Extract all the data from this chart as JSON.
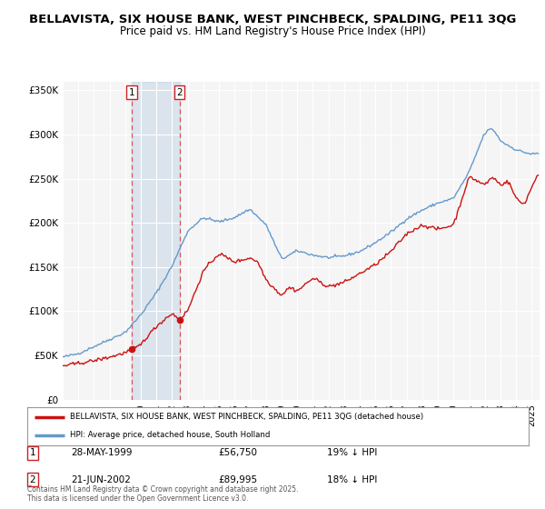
{
  "title1": "BELLAVISTA, SIX HOUSE BANK, WEST PINCHBECK, SPALDING, PE11 3QG",
  "title2": "Price paid vs. HM Land Registry's House Price Index (HPI)",
  "ylabel_ticks": [
    "£0",
    "£50K",
    "£100K",
    "£150K",
    "£200K",
    "£250K",
    "£300K",
    "£350K"
  ],
  "ytick_values": [
    0,
    50000,
    100000,
    150000,
    200000,
    250000,
    300000,
    350000
  ],
  "ylim": [
    0,
    360000
  ],
  "xlim_start": 1995.0,
  "xlim_end": 2025.5,
  "legend_line1": "BELLAVISTA, SIX HOUSE BANK, WEST PINCHBECK, SPALDING, PE11 3QG (detached house)",
  "legend_line2": "HPI: Average price, detached house, South Holland",
  "transaction1_date": "28-MAY-1999",
  "transaction1_price": 56750,
  "transaction1_x": 1999.41,
  "transaction2_date": "21-JUN-2002",
  "transaction2_price": 89995,
  "transaction2_x": 2002.47,
  "footnote": "Contains HM Land Registry data © Crown copyright and database right 2025.\nThis data is licensed under the Open Government Licence v3.0.",
  "hpi_color": "#6699cc",
  "price_color": "#cc1111",
  "dashed_color": "#dd4444",
  "span_color": "#ddeeff",
  "background_color": "#ffffff",
  "grid_color": "#dddddd",
  "title1_fontsize": 9.5,
  "title2_fontsize": 8.5
}
